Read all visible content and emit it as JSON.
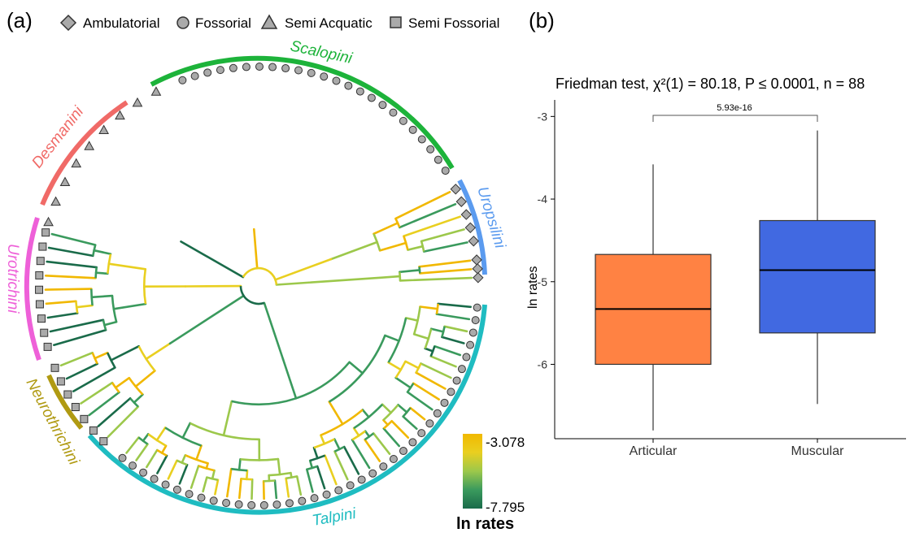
{
  "panel_a": {
    "label": "(a)",
    "legend": [
      {
        "label": "Ambulatorial",
        "marker": "diamond"
      },
      {
        "label": "Fossorial",
        "marker": "circle"
      },
      {
        "label": "Semi Acquatic",
        "marker": "triangle"
      },
      {
        "label": "Semi Fossorial",
        "marker": "square"
      }
    ],
    "clades": [
      {
        "name": "Scalopini",
        "color": "#1db33a"
      },
      {
        "name": "Uropsilini",
        "color": "#5b9bef"
      },
      {
        "name": "Talpini",
        "color": "#1fbcc1"
      },
      {
        "name": "Neurothrichini",
        "color": "#b09a12"
      },
      {
        "name": "Urotrichini",
        "color": "#ee60d8"
      },
      {
        "name": "Desmanini",
        "color": "#f06a67"
      }
    ],
    "colorbar": {
      "max_label": "-3.078",
      "min_label": "-7.795",
      "title": "ln rates",
      "max_value": -3.078,
      "min_value": -7.795,
      "colors": [
        "#f1b800",
        "#e9cf20",
        "#9cc84b",
        "#3a9a5d",
        "#1a6b4a"
      ]
    }
  },
  "panel_b": {
    "label": "(b)",
    "title": "Friedman test, χ²(1) = 80.18, P ≤ 0.0001, n = 88",
    "significance_label": "5.93e-16"
  },
  "chart_data": {
    "type": "box",
    "title": "Friedman test, χ²(1) = 80.18, P ≤ 0.0001, n = 88",
    "xlabel": "",
    "ylabel": "ln rates",
    "categories": [
      "Articular",
      "Muscular"
    ],
    "yticks": [
      -3,
      -4,
      -5,
      -6
    ],
    "ylim": [
      -6.9,
      -2.8
    ],
    "grid": false,
    "boxes": [
      {
        "category": "Articular",
        "whisker_low": -6.8,
        "q1": -6.0,
        "median": -5.33,
        "q3": -4.67,
        "whisker_high": -3.58,
        "color": "#ff8243"
      },
      {
        "category": "Muscular",
        "whisker_low": -6.48,
        "q1": -5.62,
        "median": -4.86,
        "q3": -4.26,
        "whisker_high": -3.17,
        "color": "#4169e1"
      }
    ],
    "comparison": {
      "between": [
        "Articular",
        "Muscular"
      ],
      "p_value": "5.93e-16"
    }
  }
}
